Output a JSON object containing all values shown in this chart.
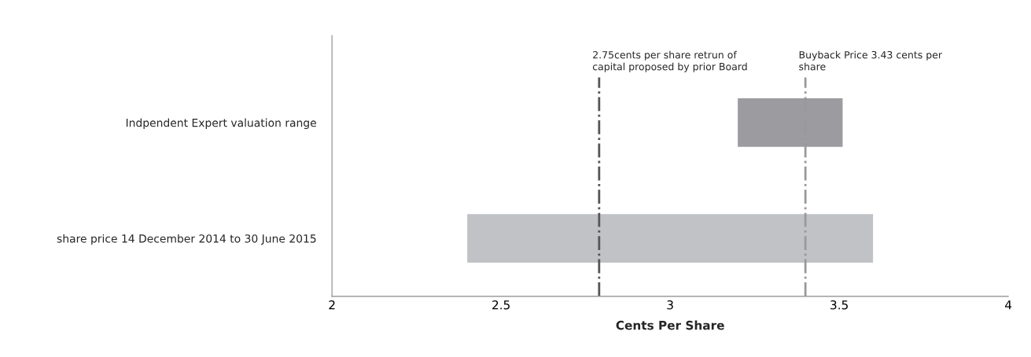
{
  "chart_data": {
    "type": "bar",
    "orientation": "horizontal",
    "xlabel": "Cents Per Share",
    "categories": [
      "Indpendent Expert valuation range",
      "share price 14 December 2014 to 30 June 2015"
    ],
    "base": [
      3.2,
      2.4
    ],
    "values": [
      0.31,
      1.2
    ],
    "colors": [
      "#9c9ca0",
      "#c1c2c6"
    ],
    "xlim": [
      2,
      4
    ],
    "xticks": [
      2,
      2.5,
      3,
      3.5,
      4
    ],
    "ref_lines": [
      {
        "axis": "x",
        "value": 2.79,
        "label": "2.75cents per share retrun of capital proposed by prior Board",
        "color": "#555555",
        "line_style": "dashed"
      },
      {
        "axis": "x",
        "value": 3.4,
        "label": "Buyback Price 3.43 cents per share",
        "color": "#999999",
        "line_style": "dashed"
      }
    ],
    "grid": false,
    "legend": false
  }
}
